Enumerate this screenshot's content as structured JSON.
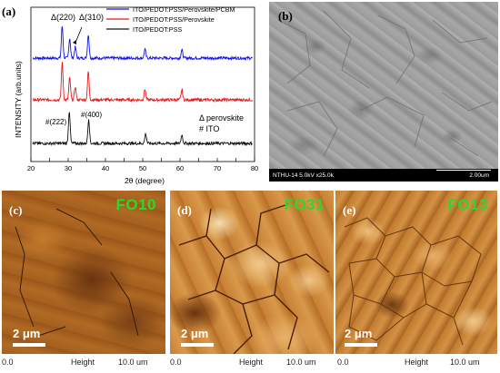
{
  "panels": {
    "a": {
      "label": "(a)"
    },
    "b": {
      "label": "(b)"
    },
    "c": {
      "label": "(c)",
      "title": "FO10"
    },
    "d": {
      "label": "(d)",
      "title": "FO31"
    },
    "e": {
      "label": "(e)",
      "title": "FO13"
    }
  },
  "xrd": {
    "legend": [
      "ITO/PEDOT:PSS/Perovskite/PCBM",
      "ITO/PEDOT:PSS/Perovskite",
      "ITO/PEDOT:PSS"
    ],
    "colors": [
      "#1010ee",
      "#e81818",
      "#111111"
    ],
    "peaks": {
      "d220": "Δ(220)",
      "d310": "Δ(310)",
      "i222": "#(222)",
      "i400": "#(400)"
    },
    "key": {
      "perovskite": "Δ perovskite",
      "ito": "# ITO"
    }
  },
  "chart_data": {
    "type": "line",
    "xlabel": "2θ (degree)",
    "ylabel": "INTENSITY (arb.units)",
    "xlim": [
      20,
      80
    ],
    "xticks": [
      20,
      25,
      30,
      35,
      40,
      45,
      50,
      55,
      60,
      65,
      70,
      75,
      80
    ],
    "series": [
      {
        "name": "ITO/PEDOT:PSS/Perovskite/PCBM",
        "peaks": [
          [
            28.4,
            3.2
          ],
          [
            30.4,
            2.0
          ],
          [
            31.9,
            1.1
          ],
          [
            35.4,
            2.4
          ],
          [
            50.6,
            0.9
          ],
          [
            60.5,
            0.8
          ]
        ]
      },
      {
        "name": "ITO/PEDOT:PSS/Perovskite",
        "peaks": [
          [
            28.4,
            3.4
          ],
          [
            30.4,
            2.0
          ],
          [
            31.9,
            1.2
          ],
          [
            35.4,
            2.6
          ],
          [
            50.6,
            1.0
          ],
          [
            60.5,
            0.9
          ]
        ]
      },
      {
        "name": "ITO/PEDOT:PSS",
        "peaks": [
          [
            30.3,
            3.0
          ],
          [
            35.5,
            2.3
          ],
          [
            50.8,
            0.9
          ],
          [
            60.5,
            0.8
          ]
        ]
      }
    ]
  },
  "sem": {
    "info": "NTHU-14 5.0kV x25.0k",
    "scale": "2.00um"
  },
  "afm": {
    "scale": "2 μm",
    "foot_left": "0.0",
    "foot_mid": "Height",
    "foot_right": "10.0 um"
  }
}
